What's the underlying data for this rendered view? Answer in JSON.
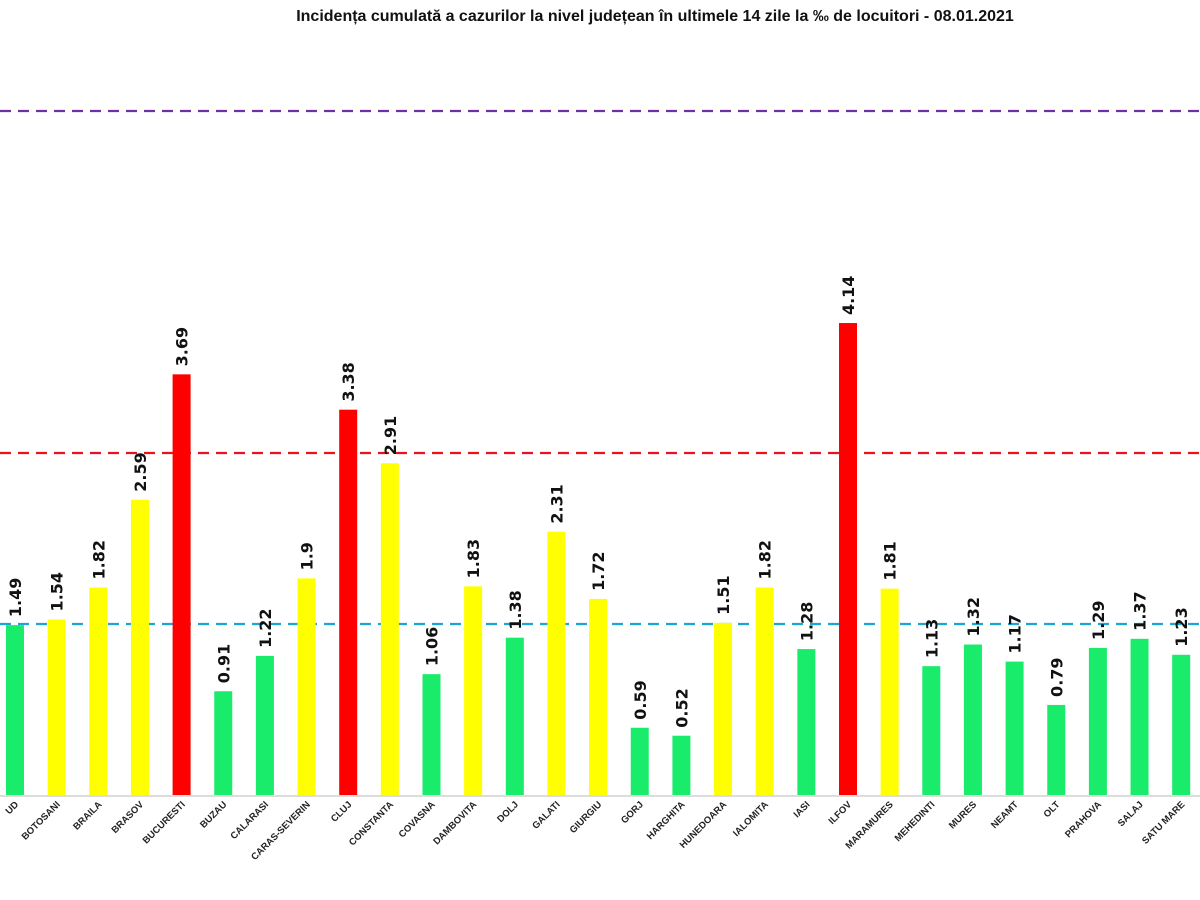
{
  "chart_data": {
    "type": "bar",
    "title": "Incidența cumulată a cazurilor la nivel județean în ultimele 14 zile la ‰ de locuitori - 08.01.2021",
    "categories": [
      "UD",
      "BOTOSANI",
      "BRAILA",
      "BRASOV",
      "BUCURESTI",
      "BUZAU",
      "CALARASI",
      "CARAS-SEVERIN",
      "CLUJ",
      "CONSTANTA",
      "COVASNA",
      "DAMBOVITA",
      "DOLJ",
      "GALATI",
      "GIURGIU",
      "GORJ",
      "HARGHITA",
      "HUNEDOARA",
      "IALOMITA",
      "IASI",
      "ILFOV",
      "MARAMURES",
      "MEHEDINTI",
      "MURES",
      "NEAMT",
      "OLT",
      "PRAHOVA",
      "SALAJ",
      "SATU MARE"
    ],
    "values": [
      1.49,
      1.54,
      1.82,
      2.59,
      3.69,
      0.91,
      1.22,
      1.9,
      3.38,
      2.91,
      1.06,
      1.83,
      1.38,
      2.31,
      1.72,
      0.59,
      0.52,
      1.51,
      1.82,
      1.28,
      4.14,
      1.81,
      1.13,
      1.32,
      1.17,
      0.79,
      1.29,
      1.37,
      1.23
    ],
    "value_labels": [
      "1.49",
      "1.54",
      "1.82",
      "2.59",
      "3.69",
      "0.91",
      "1.22",
      "1.9",
      "3.38",
      "2.91",
      "1.06",
      "1.83",
      "1.38",
      "2.31",
      "1.72",
      "0.59",
      "0.52",
      "1.51",
      "1.82",
      "1.28",
      "4.14",
      "1.81",
      "1.13",
      "1.32",
      "1.17",
      "0.79",
      "1.29",
      "1.37",
      "1.23"
    ],
    "ylim": [
      0,
      7
    ],
    "grid": false,
    "thresholds": [
      {
        "value": 1.5,
        "color": "#1aa7d8",
        "style": "dashed"
      },
      {
        "value": 3.0,
        "color": "#e8141b",
        "style": "dashed"
      },
      {
        "value": 6.0,
        "color": "#7030a0",
        "style": "dashed"
      }
    ],
    "bar_colors": {
      "low": "#19eb6a",
      "medium": "#ffff00",
      "high": "#ff0000"
    }
  }
}
